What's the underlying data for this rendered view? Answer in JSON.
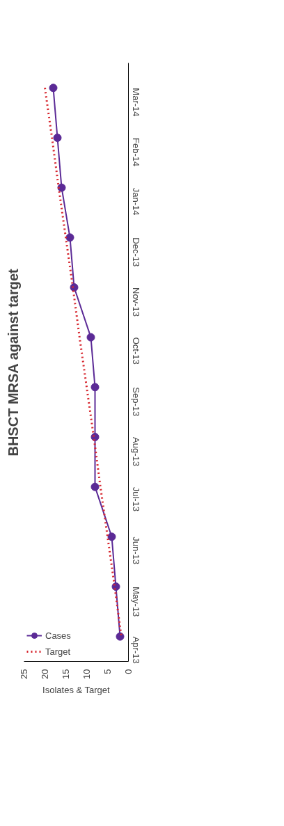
{
  "chart_data": {
    "type": "line",
    "orientation": "horizontal",
    "title": "BHSCT MRSA against target",
    "xlabel": "Isolates & Target",
    "categories": [
      "Mar-14",
      "Feb-14",
      "Jan-14",
      "Dec-13",
      "Nov-13",
      "Oct-13",
      "Sep-13",
      "Aug-13",
      "Jul-13",
      "Jun-13",
      "May-13",
      "Apr-13"
    ],
    "series": [
      {
        "name": "Cases",
        "color": "#5b2a96",
        "marker": "circle",
        "line_style": "solid",
        "values": [
          18,
          17,
          16,
          14,
          13,
          9,
          8,
          8,
          8,
          4,
          3,
          2
        ]
      },
      {
        "name": "Target",
        "color": "#d7262e",
        "marker": "none",
        "line_style": "dotted",
        "values": [
          20,
          18.3,
          16.7,
          15,
          13.3,
          11.7,
          10,
          8.3,
          6.7,
          5,
          3.3,
          1.7
        ]
      }
    ],
    "xlim": [
      25,
      0
    ],
    "xticks": [
      0,
      5,
      10,
      15,
      20,
      25
    ],
    "grid": false,
    "legend": "bottom left"
  }
}
